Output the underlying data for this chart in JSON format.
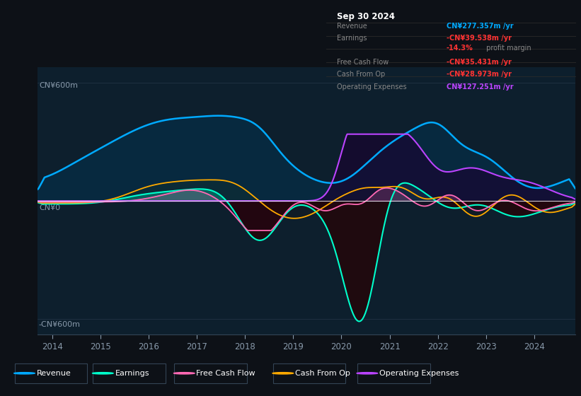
{
  "bg_color": "#0d1117",
  "plot_bg_color": "#0d1f2d",
  "y_label_top": "CN¥600m",
  "y_label_zero": "CN¥0",
  "y_label_bottom": "-CN¥600m",
  "x_ticks": [
    2014,
    2015,
    2016,
    2017,
    2018,
    2019,
    2020,
    2021,
    2022,
    2023,
    2024
  ],
  "ylim": [
    -680,
    680
  ],
  "legend": [
    {
      "label": "Revenue",
      "color": "#00aaff"
    },
    {
      "label": "Earnings",
      "color": "#00ffcc"
    },
    {
      "label": "Free Cash Flow",
      "color": "#ff69b4"
    },
    {
      "label": "Cash From Op",
      "color": "#ffaa00"
    },
    {
      "label": "Operating Expenses",
      "color": "#bb44ff"
    }
  ],
  "info_box": {
    "date": "Sep 30 2024",
    "revenue_val": "CN¥277.357m",
    "revenue_color": "#00aaff",
    "earnings_val": "-CN¥39.538m",
    "earnings_color": "#ff3333",
    "margin_val": "-14.3%",
    "margin_color": "#ff3333",
    "margin_suffix": " profit margin",
    "fcf_val": "-CN¥35.431m",
    "fcf_color": "#ff3333",
    "cashop_val": "-CN¥28.973m",
    "cashop_color": "#ff3333",
    "opex_val": "CN¥127.251m",
    "opex_color": "#bb44ff"
  },
  "c_rev": "#00aaff",
  "c_earn": "#00ffcc",
  "c_fcf": "#ff69b4",
  "c_cashop": "#ffaa00",
  "c_opex": "#bb44ff",
  "c_rev_fill": "#003366",
  "c_earn_neg_fill": "#330000",
  "c_opex_fill": "#220044",
  "c_fcf_neg_fill": "#330022",
  "zero_line_color": "#ffffff"
}
